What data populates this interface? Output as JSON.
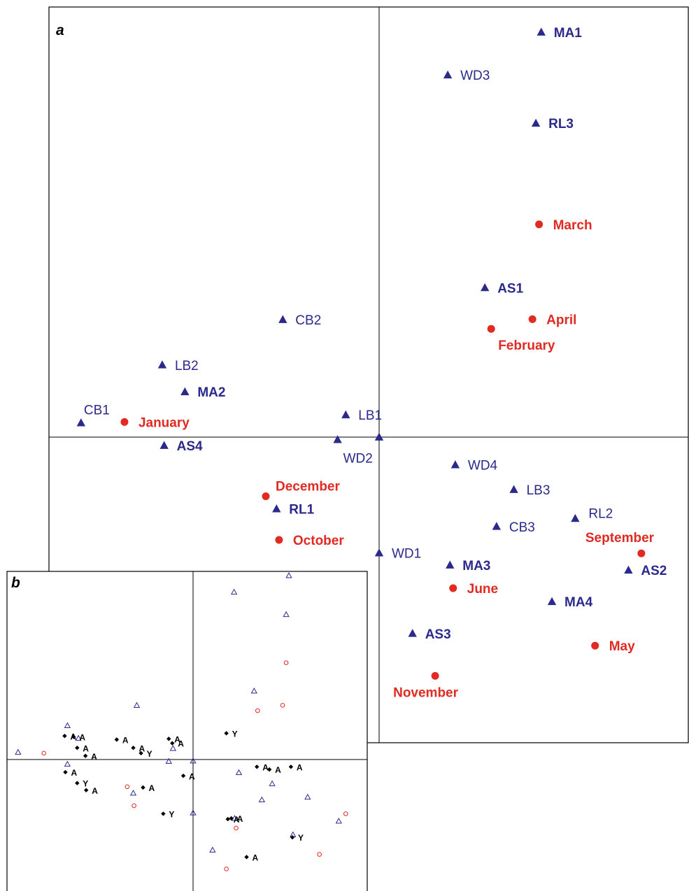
{
  "colors": {
    "site": "#2b2a8c",
    "month": "#e02a22",
    "frame": "#000000",
    "panel_b_marker": "#000000"
  },
  "chart_data": [
    {
      "panel": "a",
      "type": "scatter",
      "title": "",
      "xlabel": "",
      "ylabel": "",
      "xlim": [
        -100,
        100
      ],
      "ylim": [
        -100,
        100
      ],
      "grid": false,
      "axes_lines_at_origin": true,
      "series": [
        {
          "marker": "filled-triangle",
          "points": [
            {
              "label": "MA1",
              "bold": true,
              "x": 51.5,
              "y": 96.5
            },
            {
              "label": "WD3",
              "bold": false,
              "x": 21.8,
              "y": 86.3
            },
            {
              "label": "RL3",
              "bold": true,
              "x": 49.8,
              "y": 74.8
            },
            {
              "label": "AS1",
              "bold": true,
              "x": 33.6,
              "y": 35.6
            },
            {
              "label": "CB2",
              "bold": false,
              "x": -30.6,
              "y": 28.0
            },
            {
              "label": "LB2",
              "bold": false,
              "x": -68.9,
              "y": 17.2
            },
            {
              "label": "MA2",
              "bold": true,
              "x": -61.7,
              "y": 10.8
            },
            {
              "label": "CB1",
              "bold": false,
              "x": -94.7,
              "y": 3.4
            },
            {
              "label": "LB1",
              "bold": false,
              "x": -10.6,
              "y": 5.3
            },
            {
              "label": "AS4",
              "bold": true,
              "x": -68.3,
              "y": -2.0
            },
            {
              "label": "WD2",
              "bold": false,
              "x": -13.2,
              "y": -0.6
            },
            {
              "label": "",
              "bold": false,
              "x": 0.0,
              "y": 0.0
            },
            {
              "label": "WD4",
              "bold": false,
              "x": 24.2,
              "y": -6.6
            },
            {
              "label": "LB3",
              "bold": false,
              "x": 42.8,
              "y": -12.5
            },
            {
              "label": "RL1",
              "bold": true,
              "x": -32.6,
              "y": -17.1
            },
            {
              "label": "CB3",
              "bold": false,
              "x": 37.3,
              "y": -21.3
            },
            {
              "label": "RL2",
              "bold": false,
              "x": 62.3,
              "y": -19.4
            },
            {
              "label": "WD1",
              "bold": false,
              "x": 0.0,
              "y": -27.6
            },
            {
              "label": "MA3",
              "bold": true,
              "x": 22.5,
              "y": -30.5
            },
            {
              "label": "AS2",
              "bold": true,
              "x": 79.2,
              "y": -31.7
            },
            {
              "label": "MA4",
              "bold": true,
              "x": 54.9,
              "y": -39.2
            },
            {
              "label": "AS3",
              "bold": true,
              "x": 10.6,
              "y": -46.8
            }
          ]
        },
        {
          "marker": "filled-circle",
          "points": [
            {
              "label": "March",
              "x": 50.8,
              "y": 50.7
            },
            {
              "label": "April",
              "x": 48.7,
              "y": 28.1
            },
            {
              "label": "February",
              "x": 35.6,
              "y": 25.8
            },
            {
              "label": "January",
              "x": -80.9,
              "y": 3.6
            },
            {
              "label": "December",
              "x": -36.0,
              "y": -14.1
            },
            {
              "label": "October",
              "x": -31.8,
              "y": -24.5
            },
            {
              "label": "September",
              "x": 83.3,
              "y": -27.7
            },
            {
              "label": "June",
              "x": 23.5,
              "y": -36.0
            },
            {
              "label": "May",
              "x": 68.6,
              "y": -49.7
            },
            {
              "label": "November",
              "x": 17.8,
              "y": -56.9
            }
          ]
        }
      ]
    },
    {
      "panel": "b",
      "type": "scatter",
      "title": "",
      "xlabel": "",
      "ylabel": "",
      "xlim": [
        -100,
        100
      ],
      "ylim": [
        -100,
        100
      ],
      "grid": false,
      "axes_lines_at_origin": true,
      "series": [
        {
          "marker": "open-triangle",
          "points": [
            {
              "x": 52.1,
              "y": 96.0
            },
            {
              "x": 22.3,
              "y": 87.4
            },
            {
              "x": 50.6,
              "y": 75.7
            },
            {
              "x": 33.2,
              "y": 35.8
            },
            {
              "x": -30.6,
              "y": 28.3
            },
            {
              "x": -68.3,
              "y": 17.7
            },
            {
              "x": -62.3,
              "y": 11.1
            },
            {
              "x": -95.1,
              "y": 3.8
            },
            {
              "x": -10.9,
              "y": 5.8
            },
            {
              "x": -68.3,
              "y": -2.4
            },
            {
              "x": -13.2,
              "y": -0.9
            },
            {
              "x": 0.0,
              "y": -0.7
            },
            {
              "x": 24.9,
              "y": -6.8
            },
            {
              "x": 43.0,
              "y": -12.6
            },
            {
              "x": -32.5,
              "y": -17.5
            },
            {
              "x": 37.4,
              "y": -21.0
            },
            {
              "x": 62.3,
              "y": -19.6
            },
            {
              "x": 0.0,
              "y": -27.8
            },
            {
              "x": 22.6,
              "y": -30.7
            },
            {
              "x": 79.2,
              "y": -32.1
            },
            {
              "x": 54.3,
              "y": -39.2
            },
            {
              "x": 10.6,
              "y": -47.2
            }
          ]
        },
        {
          "marker": "open-circle",
          "points": [
            {
              "x": 50.6,
              "y": 50.5
            },
            {
              "x": 48.7,
              "y": 28.3
            },
            {
              "x": 35.1,
              "y": 25.5
            },
            {
              "x": -81.1,
              "y": 3.3
            },
            {
              "x": -35.8,
              "y": -14.2
            },
            {
              "x": -32.1,
              "y": -24.1
            },
            {
              "x": 83.0,
              "y": -28.3
            },
            {
              "x": 23.4,
              "y": -35.8
            },
            {
              "x": 68.7,
              "y": -49.5
            },
            {
              "x": 18.1,
              "y": -57.1
            }
          ]
        },
        {
          "marker": "filled-diamond",
          "points": [
            {
              "label": "A",
              "x": -69.8,
              "y": 12.3
            },
            {
              "label": "A",
              "x": -64.9,
              "y": 11.8
            },
            {
              "label": "A",
              "x": -13.2,
              "y": 10.8
            },
            {
              "label": "A",
              "x": -41.5,
              "y": 10.4
            },
            {
              "label": "A",
              "x": -11.3,
              "y": 8.5
            },
            {
              "label": "A",
              "x": -63.0,
              "y": 6.1
            },
            {
              "label": "A",
              "x": -32.5,
              "y": 6.1
            },
            {
              "label": "Y",
              "x": -28.3,
              "y": 3.3
            },
            {
              "label": "A",
              "x": -58.5,
              "y": 1.9
            },
            {
              "label": "Y",
              "x": 18.1,
              "y": 13.7
            },
            {
              "label": "A",
              "x": 34.7,
              "y": -3.8
            },
            {
              "label": "A",
              "x": 41.5,
              "y": -5.2
            },
            {
              "label": "A",
              "x": 53.2,
              "y": -3.8
            },
            {
              "label": "A",
              "x": -5.3,
              "y": -8.5
            },
            {
              "label": "A",
              "x": -69.4,
              "y": -6.6
            },
            {
              "label": "Y",
              "x": -63.0,
              "y": -12.3
            },
            {
              "label": "A",
              "x": -58.1,
              "y": -16.0
            },
            {
              "label": "A",
              "x": -27.2,
              "y": -14.6
            },
            {
              "label": "Y",
              "x": -16.2,
              "y": -28.3
            },
            {
              "label": "A",
              "x": 18.9,
              "y": -31.1
            },
            {
              "label": "A",
              "x": 20.8,
              "y": -30.7
            },
            {
              "label": "Y",
              "x": 54.0,
              "y": -40.6
            },
            {
              "label": "A",
              "x": 29.1,
              "y": -50.9
            }
          ]
        }
      ]
    }
  ]
}
